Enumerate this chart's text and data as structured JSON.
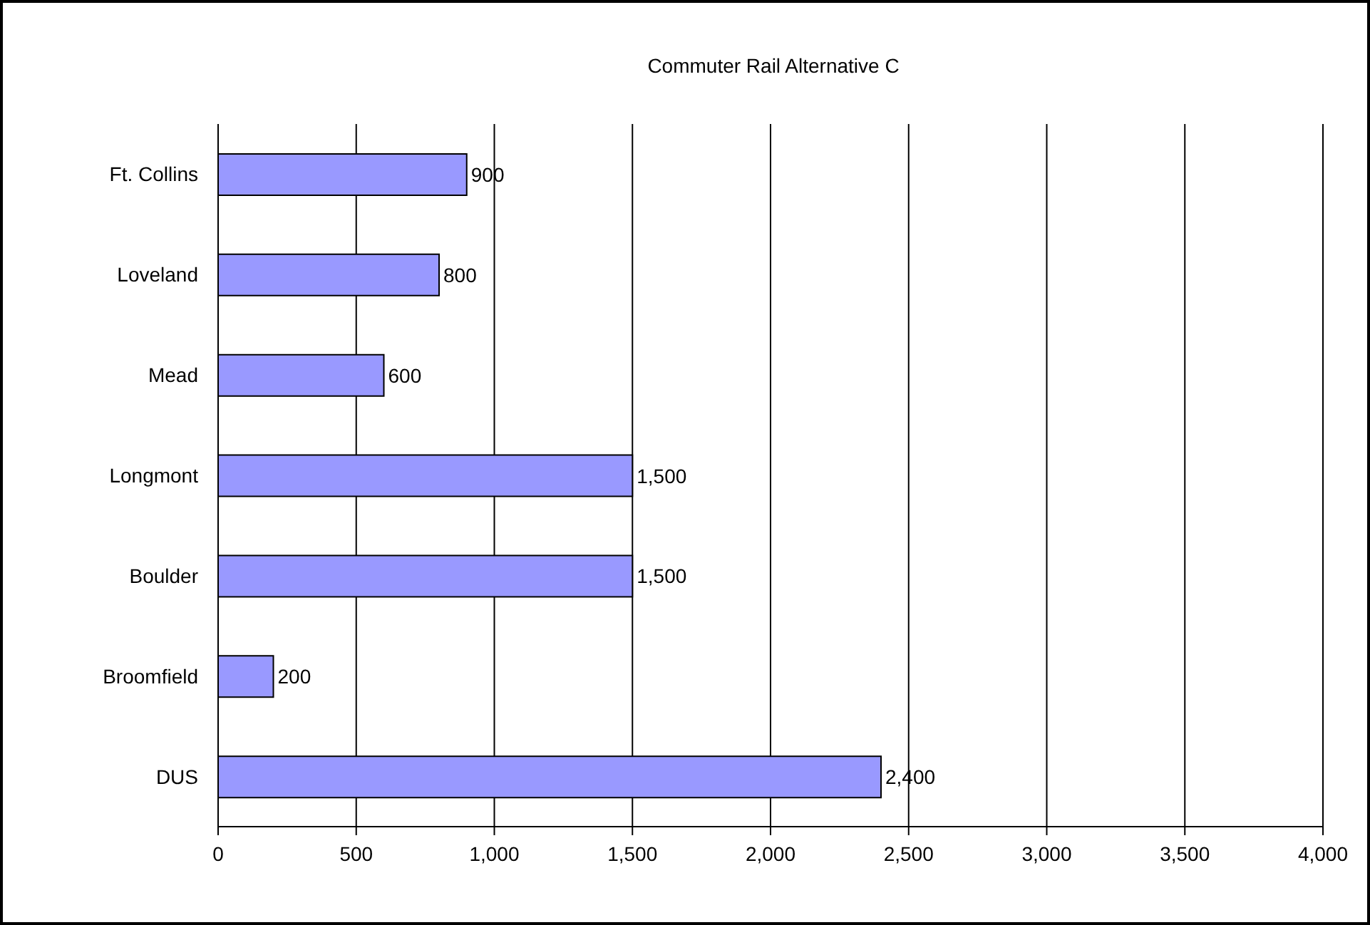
{
  "chart_data": {
    "type": "bar",
    "orientation": "horizontal",
    "title": "Commuter Rail Alternative C",
    "categories": [
      "Ft. Collins",
      "Loveland",
      "Mead",
      "Longmont",
      "Boulder",
      "Broomfield",
      "DUS"
    ],
    "values": [
      900,
      800,
      600,
      1500,
      1500,
      200,
      2400
    ],
    "value_labels": [
      "900",
      "800",
      "600",
      "1,500",
      "1,500",
      "200",
      "2,400"
    ],
    "color": "#9999ff",
    "xlim": [
      0,
      4000
    ],
    "xticks": [
      0,
      500,
      {
        "value": 1000,
        "label": "1,000"
      },
      {
        "value": 1500,
        "label": "1,500"
      },
      {
        "value": 2000,
        "label": "2,000"
      },
      {
        "value": 2500,
        "label": "2,500"
      },
      {
        "value": 3000,
        "label": "3,000"
      },
      {
        "value": 3500,
        "label": "3,500"
      },
      {
        "value": 4000,
        "label": "4,000"
      }
    ],
    "grid": "x"
  }
}
